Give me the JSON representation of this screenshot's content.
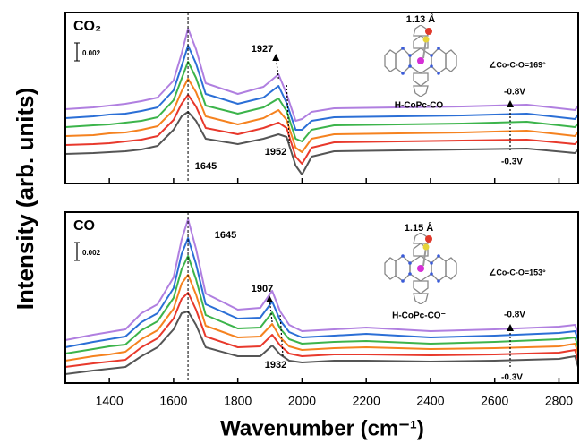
{
  "chart_data": [
    {
      "type": "line",
      "label": "CO₂",
      "ylabel": "Intensity (arb. units)",
      "scale_bar": 0.002,
      "xlim": [
        1263,
        2860
      ],
      "xticks": [
        1400,
        1600,
        1800,
        2000,
        2200,
        2400,
        2600,
        2800
      ],
      "ylim": [
        0,
        0.0191
      ],
      "peaks": [
        1645,
        1927,
        1952
      ],
      "bond": "1.13 Å",
      "angle": "∠Co-C-O=169°",
      "molecule": "H-CoPc-CO",
      "potential_high": "-0.8V",
      "potential_low": "-0.3V",
      "x": [
        1263,
        1350,
        1400,
        1450,
        1500,
        1550,
        1600,
        1625,
        1645,
        1670,
        1700,
        1800,
        1880,
        1927,
        1952,
        1980,
        2000,
        2030,
        2100,
        2300,
        2500,
        2700,
        2850,
        2860
      ],
      "series": [
        {
          "color": "#555555",
          "values": [
            0.0033,
            0.0034,
            0.0035,
            0.0036,
            0.0038,
            0.0042,
            0.006,
            0.0075,
            0.008,
            0.007,
            0.005,
            0.0044,
            0.005,
            0.0055,
            0.0052,
            0.002,
            0.001,
            0.003,
            0.0036,
            0.0037,
            0.0038,
            0.0039,
            0.0034,
            0.0038
          ]
        },
        {
          "color": "#e8392c",
          "values": [
            0.0043,
            0.0044,
            0.0045,
            0.0047,
            0.0049,
            0.0053,
            0.0071,
            0.0089,
            0.0099,
            0.0086,
            0.0062,
            0.0055,
            0.0062,
            0.0068,
            0.0062,
            0.003,
            0.0022,
            0.004,
            0.0046,
            0.0047,
            0.0048,
            0.0049,
            0.0044,
            0.0048
          ]
        },
        {
          "color": "#f5821f",
          "values": [
            0.0053,
            0.0054,
            0.0056,
            0.0057,
            0.006,
            0.0064,
            0.0082,
            0.0103,
            0.0117,
            0.0102,
            0.0075,
            0.0066,
            0.0073,
            0.0082,
            0.0071,
            0.004,
            0.0035,
            0.005,
            0.0055,
            0.0056,
            0.0057,
            0.0059,
            0.0053,
            0.0058
          ]
        },
        {
          "color": "#3cb44b",
          "values": [
            0.0063,
            0.0065,
            0.0066,
            0.0068,
            0.007,
            0.0074,
            0.0093,
            0.0117,
            0.0136,
            0.0118,
            0.0087,
            0.0078,
            0.0085,
            0.0095,
            0.0081,
            0.005,
            0.0047,
            0.006,
            0.0065,
            0.0066,
            0.0067,
            0.0069,
            0.0063,
            0.0067
          ]
        },
        {
          "color": "#2b6fd6",
          "values": [
            0.0073,
            0.0075,
            0.0077,
            0.0078,
            0.0081,
            0.0085,
            0.0104,
            0.0131,
            0.0154,
            0.0134,
            0.01,
            0.0089,
            0.0096,
            0.0109,
            0.009,
            0.006,
            0.006,
            0.007,
            0.0074,
            0.0075,
            0.0076,
            0.0078,
            0.0072,
            0.0077
          ]
        },
        {
          "color": "#b07fe0",
          "values": [
            0.0083,
            0.0085,
            0.0087,
            0.0089,
            0.0092,
            0.0096,
            0.0115,
            0.0145,
            0.0173,
            0.015,
            0.0112,
            0.01,
            0.0108,
            0.0122,
            0.01,
            0.007,
            0.0072,
            0.008,
            0.0084,
            0.0085,
            0.0086,
            0.0088,
            0.0082,
            0.0087
          ]
        }
      ]
    },
    {
      "type": "line",
      "label": "CO",
      "xlabel": "Wavenumber (cm⁻¹)",
      "scale_bar": 0.002,
      "xlim": [
        1263,
        2860
      ],
      "xticks": [
        1400,
        1600,
        1800,
        2000,
        2200,
        2400,
        2600,
        2800
      ],
      "ylim": [
        0,
        0.0191
      ],
      "peaks": [
        1645,
        1907,
        1932
      ],
      "bond": "1.15 Å",
      "angle": "∠Co-C-O=153°",
      "molecule": "H-CoPc-CO⁻",
      "potential_high": "-0.8V",
      "potential_low": "-0.3V",
      "x": [
        1263,
        1350,
        1400,
        1450,
        1500,
        1550,
        1600,
        1625,
        1645,
        1670,
        1700,
        1800,
        1870,
        1907,
        1932,
        1960,
        2000,
        2100,
        2200,
        2400,
        2600,
        2800,
        2850,
        2860
      ],
      "series": [
        {
          "color": "#555555",
          "values": [
            0.001,
            0.0014,
            0.0016,
            0.0018,
            0.003,
            0.004,
            0.006,
            0.0078,
            0.008,
            0.0065,
            0.004,
            0.003,
            0.003,
            0.0042,
            0.0032,
            0.0025,
            0.0023,
            0.0025,
            0.0025,
            0.0024,
            0.0025,
            0.0027,
            0.003,
            0.0018
          ]
        },
        {
          "color": "#e8392c",
          "values": [
            0.0018,
            0.0022,
            0.0024,
            0.0026,
            0.004,
            0.005,
            0.0072,
            0.0094,
            0.0101,
            0.0082,
            0.0052,
            0.004,
            0.0041,
            0.0054,
            0.0042,
            0.0033,
            0.003,
            0.0032,
            0.0032,
            0.0031,
            0.0032,
            0.0034,
            0.0037,
            0.0025
          ]
        },
        {
          "color": "#f5821f",
          "values": [
            0.0025,
            0.003,
            0.0032,
            0.0035,
            0.0049,
            0.0059,
            0.0083,
            0.0111,
            0.0121,
            0.0099,
            0.0064,
            0.0051,
            0.0052,
            0.0066,
            0.0051,
            0.0041,
            0.0037,
            0.0039,
            0.004,
            0.0038,
            0.0039,
            0.0041,
            0.0044,
            0.0033
          ]
        },
        {
          "color": "#3cb44b",
          "values": [
            0.0033,
            0.0038,
            0.0041,
            0.0043,
            0.0059,
            0.0069,
            0.0095,
            0.0127,
            0.0142,
            0.0116,
            0.0076,
            0.0061,
            0.0062,
            0.0079,
            0.0061,
            0.0049,
            0.0044,
            0.0046,
            0.0047,
            0.0044,
            0.0046,
            0.0049,
            0.0051,
            0.004
          ]
        },
        {
          "color": "#2b6fd6",
          "values": [
            0.004,
            0.0046,
            0.0049,
            0.0052,
            0.0068,
            0.0078,
            0.0106,
            0.0144,
            0.0162,
            0.0133,
            0.0088,
            0.0072,
            0.0073,
            0.0091,
            0.007,
            0.0057,
            0.0051,
            0.0053,
            0.0055,
            0.0051,
            0.0053,
            0.0056,
            0.0058,
            0.0048
          ]
        },
        {
          "color": "#b07fe0",
          "values": [
            0.0048,
            0.0054,
            0.0057,
            0.006,
            0.0078,
            0.0088,
            0.0118,
            0.016,
            0.0183,
            0.015,
            0.01,
            0.0082,
            0.0084,
            0.0103,
            0.008,
            0.0065,
            0.0058,
            0.006,
            0.0062,
            0.0058,
            0.006,
            0.0063,
            0.0065,
            0.0055
          ]
        }
      ]
    }
  ]
}
